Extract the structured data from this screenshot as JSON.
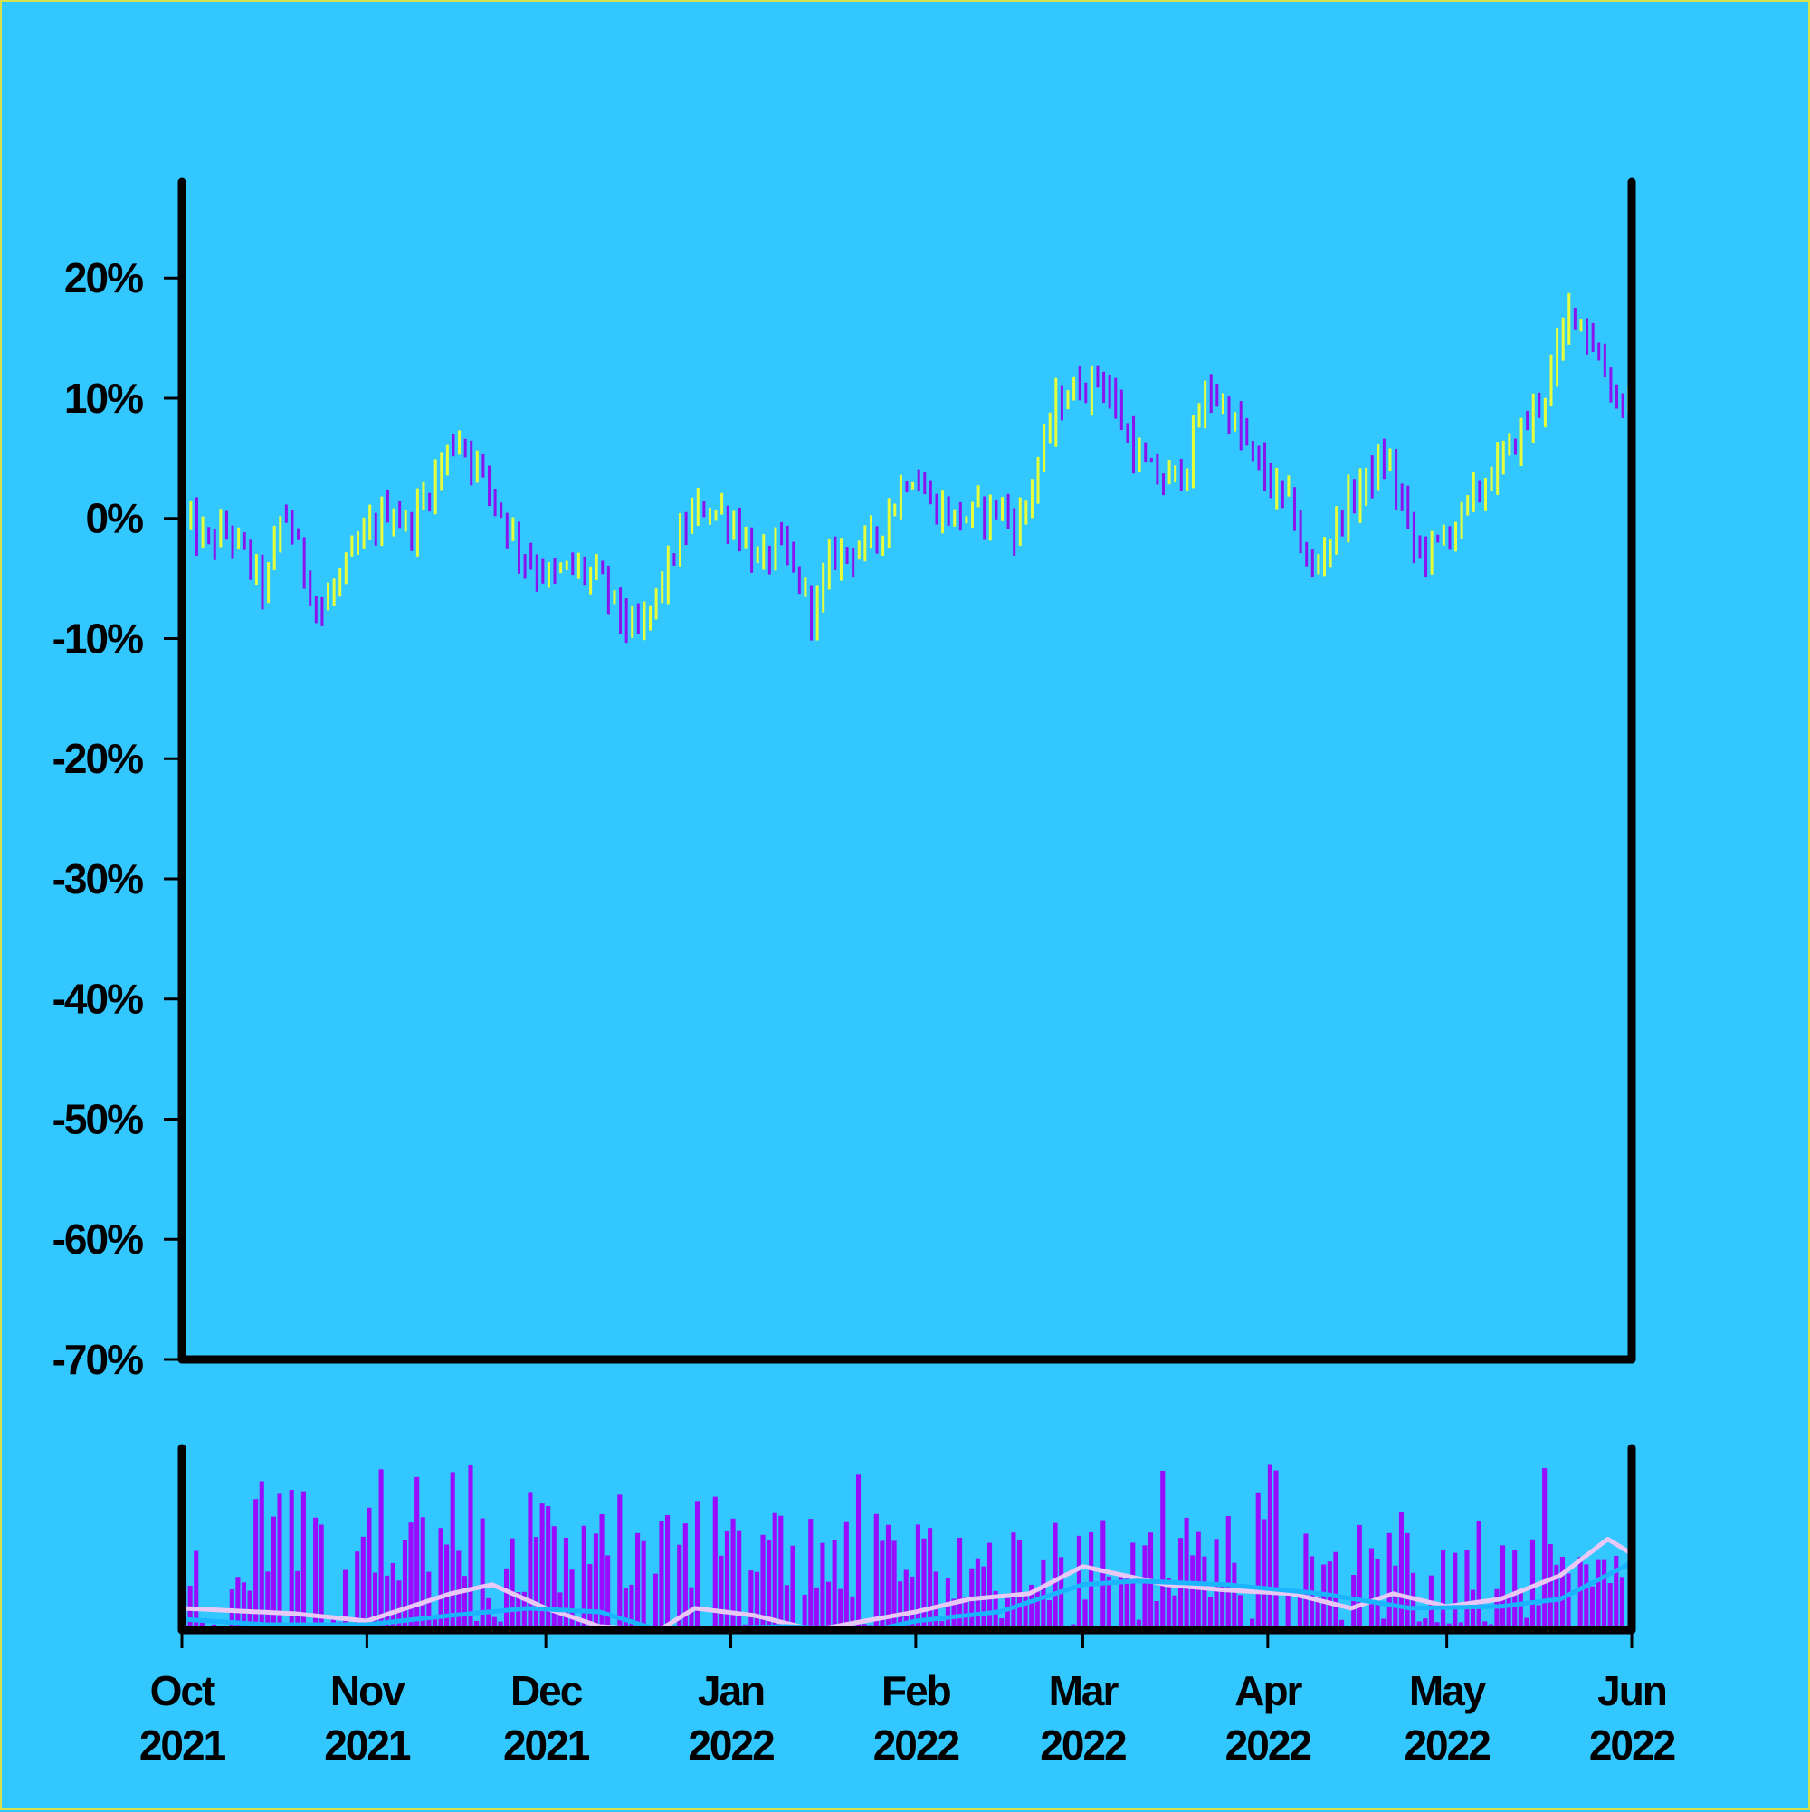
{
  "chart_data": {
    "type": "ohlc",
    "colors": {
      "background": "#33c7ff",
      "up_bar": "#e6ff3a",
      "down_bar": "#8a14f0",
      "volume": "#9a0cff",
      "ma_short": "#e8c8f4",
      "ma_long": "#1ab4ff",
      "axes": "#000000"
    },
    "price_panel": {
      "y_unit": "percent change",
      "ylim": [
        -70,
        28
      ],
      "y_ticks": [
        20,
        10,
        0,
        -10,
        -20,
        -30,
        -40,
        -50,
        -60,
        -70
      ],
      "y_tick_labels": [
        "20%",
        "10%",
        "0%",
        "-10%",
        "-20%",
        "-30%",
        "-40%",
        "-50%",
        "-60%",
        "-70%"
      ],
      "grid": false
    },
    "volume_panel": {
      "ylim": [
        0,
        1.0
      ],
      "y_ticks": [],
      "moving_averages": [
        "ma_short",
        "ma_long"
      ]
    },
    "x_axis": {
      "start": "2021-10-01",
      "end": "2022-06-01",
      "ticks": [
        {
          "date": "2021-10-01",
          "month": "Oct",
          "year": "2021"
        },
        {
          "date": "2021-11-01",
          "month": "Nov",
          "year": "2021"
        },
        {
          "date": "2021-12-01",
          "month": "Dec",
          "year": "2021"
        },
        {
          "date": "2022-01-01",
          "month": "Jan",
          "year": "2022"
        },
        {
          "date": "2022-02-01",
          "month": "Feb",
          "year": "2022"
        },
        {
          "date": "2022-03-01",
          "month": "Mar",
          "year": "2022"
        },
        {
          "date": "2022-04-01",
          "month": "Apr",
          "year": "2022"
        },
        {
          "date": "2022-05-01",
          "month": "May",
          "year": "2022"
        },
        {
          "date": "2022-06-01",
          "month": "Jun",
          "year": "2022"
        }
      ]
    },
    "trend_anchors": [
      [
        "2021-10-01",
        0
      ],
      [
        "2021-10-05",
        -2
      ],
      [
        "2021-10-09",
        -1
      ],
      [
        "2021-10-15",
        -6
      ],
      [
        "2021-10-18",
        1
      ],
      [
        "2021-10-24",
        -8
      ],
      [
        "2021-10-31",
        -2
      ],
      [
        "2021-11-05",
        1
      ],
      [
        "2021-11-08",
        -1
      ],
      [
        "2021-11-12",
        3
      ],
      [
        "2021-11-16",
        7
      ],
      [
        "2021-11-20",
        4
      ],
      [
        "2021-11-27",
        -3
      ],
      [
        "2021-12-02",
        -5
      ],
      [
        "2021-12-05",
        -4
      ],
      [
        "2021-12-10",
        -5
      ],
      [
        "2021-12-16",
        -10
      ],
      [
        "2021-12-19",
        -7
      ],
      [
        "2021-12-25",
        0
      ],
      [
        "2021-12-28",
        1
      ],
      [
        "2022-01-01",
        0
      ],
      [
        "2022-01-06",
        -4
      ],
      [
        "2022-01-09",
        -2
      ],
      [
        "2022-01-15",
        -8
      ],
      [
        "2022-01-18",
        -3
      ],
      [
        "2022-01-25",
        -2
      ],
      [
        "2022-01-31",
        4
      ],
      [
        "2022-02-04",
        1
      ],
      [
        "2022-02-08",
        0
      ],
      [
        "2022-02-15",
        1
      ],
      [
        "2022-02-18",
        -1
      ],
      [
        "2022-02-25",
        10
      ],
      [
        "2022-03-01",
        11
      ],
      [
        "2022-03-04",
        12
      ],
      [
        "2022-03-10",
        5
      ],
      [
        "2022-03-14",
        3
      ],
      [
        "2022-03-18",
        4
      ],
      [
        "2022-03-22",
        11
      ],
      [
        "2022-03-25",
        9
      ],
      [
        "2022-04-01",
        3
      ],
      [
        "2022-04-05",
        1
      ],
      [
        "2022-04-08",
        -5
      ],
      [
        "2022-04-13",
        0
      ],
      [
        "2022-04-17",
        3
      ],
      [
        "2022-04-21",
        5
      ],
      [
        "2022-04-26",
        -3
      ],
      [
        "2022-04-30",
        -2
      ],
      [
        "2022-05-06",
        2
      ],
      [
        "2022-05-12",
        6
      ],
      [
        "2022-05-18",
        11
      ],
      [
        "2022-05-22",
        18
      ],
      [
        "2022-05-26",
        14
      ],
      [
        "2022-05-29",
        10
      ],
      [
        "2022-06-01",
        10
      ]
    ],
    "volume_profile": [
      [
        "2021-10-01",
        0.45
      ],
      [
        "2021-10-15",
        0.6
      ],
      [
        "2021-11-01",
        0.5
      ],
      [
        "2021-11-15",
        0.45
      ],
      [
        "2021-12-01",
        0.5
      ],
      [
        "2021-12-15",
        0.55
      ],
      [
        "2022-01-01",
        0.6
      ],
      [
        "2022-01-15",
        0.5
      ],
      [
        "2022-02-01",
        0.45
      ],
      [
        "2022-02-15",
        0.4
      ],
      [
        "2022-03-01",
        0.45
      ],
      [
        "2022-03-15",
        0.45
      ],
      [
        "2022-04-01",
        0.5
      ],
      [
        "2022-04-15",
        0.5
      ],
      [
        "2022-05-01",
        0.45
      ],
      [
        "2022-05-15",
        0.4
      ],
      [
        "2022-06-01",
        0.3
      ]
    ],
    "ma_short_profile": [
      [
        "2021-10-01",
        0.12
      ],
      [
        "2021-10-20",
        0.09
      ],
      [
        "2021-11-01",
        0.05
      ],
      [
        "2021-11-15",
        0.2
      ],
      [
        "2021-11-22",
        0.25
      ],
      [
        "2021-12-01",
        0.12
      ],
      [
        "2021-12-10",
        0.02
      ],
      [
        "2021-12-20",
        0.0
      ],
      [
        "2021-12-26",
        0.12
      ],
      [
        "2022-01-05",
        0.08
      ],
      [
        "2022-01-15",
        0.0
      ],
      [
        "2022-02-01",
        0.1
      ],
      [
        "2022-02-10",
        0.17
      ],
      [
        "2022-02-20",
        0.2
      ],
      [
        "2022-03-01",
        0.35
      ],
      [
        "2022-03-15",
        0.25
      ],
      [
        "2022-03-25",
        0.22
      ],
      [
        "2022-04-05",
        0.2
      ],
      [
        "2022-04-15",
        0.12
      ],
      [
        "2022-04-22",
        0.2
      ],
      [
        "2022-05-01",
        0.13
      ],
      [
        "2022-05-10",
        0.17
      ],
      [
        "2022-05-20",
        0.3
      ],
      [
        "2022-05-28",
        0.5
      ],
      [
        "2022-06-01",
        0.42
      ]
    ],
    "ma_long_profile": [
      [
        "2021-10-01",
        0.06
      ],
      [
        "2021-10-15",
        0.03
      ],
      [
        "2021-11-01",
        0.03
      ],
      [
        "2021-11-15",
        0.08
      ],
      [
        "2021-11-28",
        0.12
      ],
      [
        "2021-12-10",
        0.1
      ],
      [
        "2021-12-20",
        0.0
      ],
      [
        "2022-01-10",
        0.02
      ],
      [
        "2022-01-25",
        0.0
      ],
      [
        "2022-02-01",
        0.05
      ],
      [
        "2022-02-15",
        0.1
      ],
      [
        "2022-03-01",
        0.25
      ],
      [
        "2022-03-10",
        0.27
      ],
      [
        "2022-03-25",
        0.25
      ],
      [
        "2022-04-10",
        0.2
      ],
      [
        "2022-04-25",
        0.12
      ],
      [
        "2022-05-10",
        0.13
      ],
      [
        "2022-05-20",
        0.17
      ],
      [
        "2022-06-01",
        0.37
      ]
    ]
  }
}
